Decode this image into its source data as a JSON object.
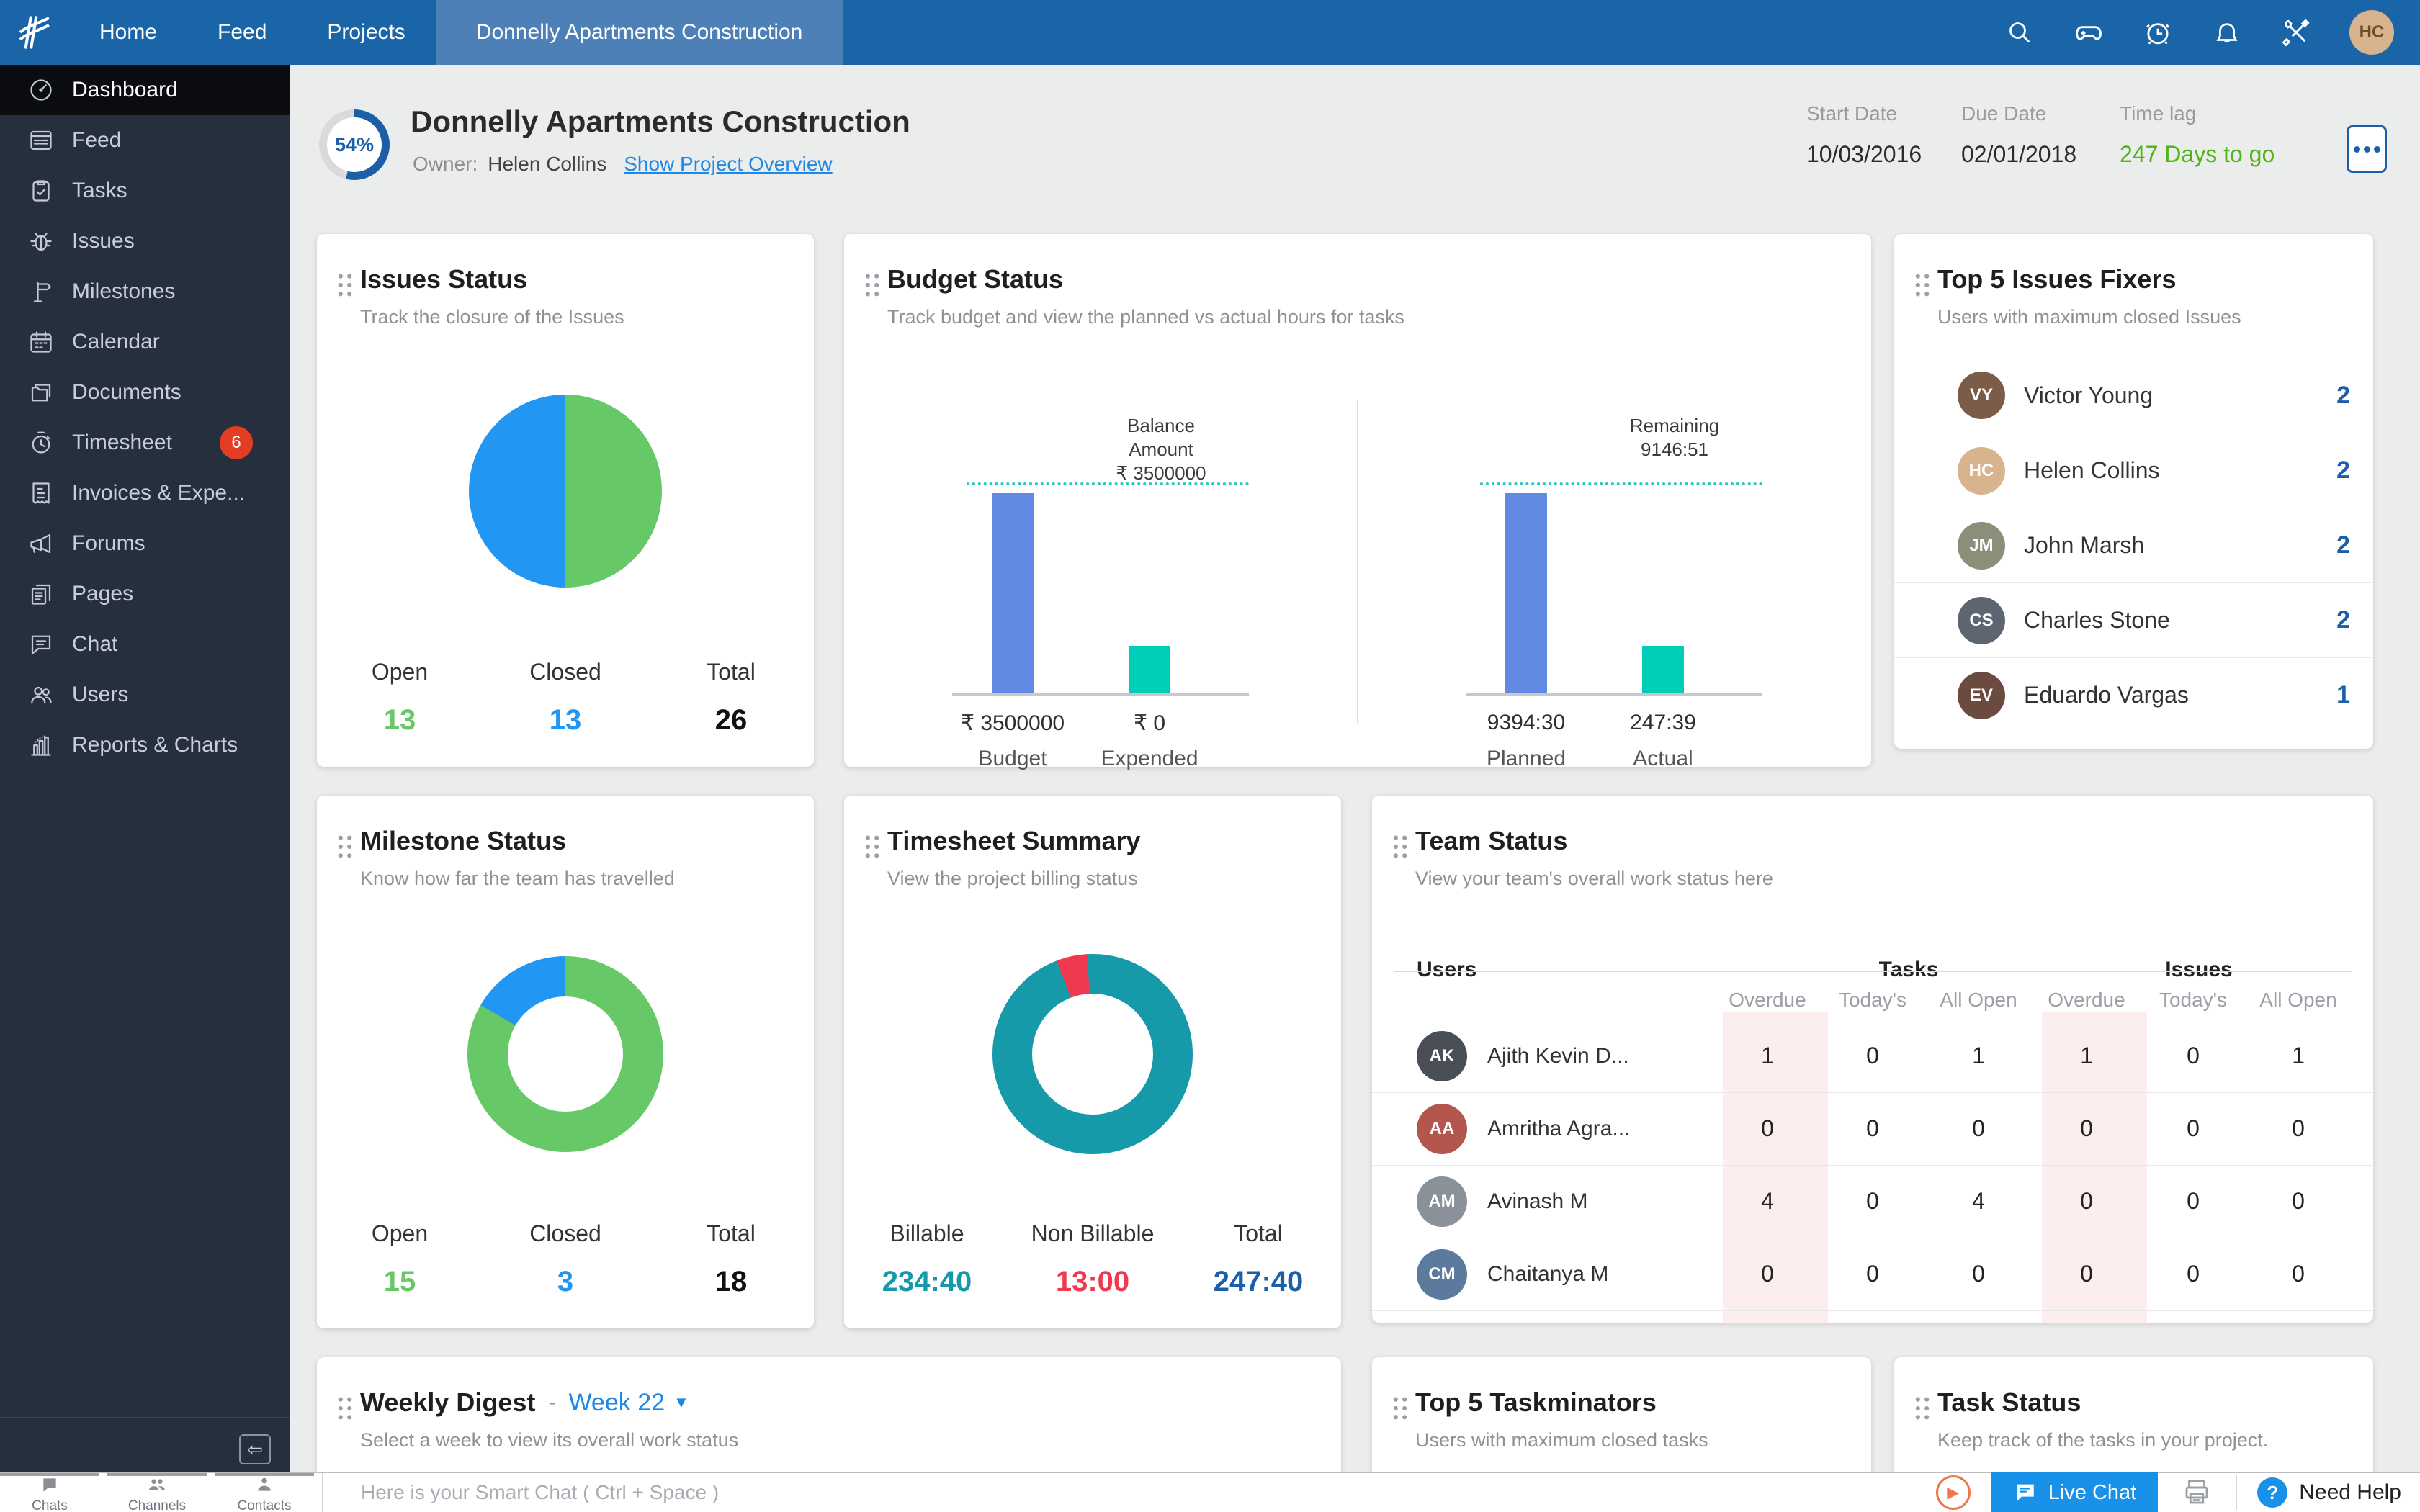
{
  "nav": {
    "items": [
      {
        "label": "Home"
      },
      {
        "label": "Feed"
      },
      {
        "label": "Projects"
      }
    ],
    "active_project_tab": "Donnelly Apartments Construction",
    "user_avatar_initials": "HC"
  },
  "sidebar": {
    "items": [
      {
        "label": "Dashboard",
        "icon": "dashboard",
        "active": true
      },
      {
        "label": "Feed",
        "icon": "feed"
      },
      {
        "label": "Tasks",
        "icon": "tasks"
      },
      {
        "label": "Issues",
        "icon": "bug"
      },
      {
        "label": "Milestones",
        "icon": "milestone"
      },
      {
        "label": "Calendar",
        "icon": "calendar"
      },
      {
        "label": "Documents",
        "icon": "documents"
      },
      {
        "label": "Timesheet",
        "icon": "timesheet",
        "badge": "6"
      },
      {
        "label": "Invoices & Expe...",
        "icon": "invoice"
      },
      {
        "label": "Forums",
        "icon": "forum"
      },
      {
        "label": "Pages",
        "icon": "pages"
      },
      {
        "label": "Chat",
        "icon": "chat"
      },
      {
        "label": "Users",
        "icon": "users"
      },
      {
        "label": "Reports & Charts",
        "icon": "reports"
      }
    ]
  },
  "header": {
    "progress_percent": "54%",
    "title": "Donnelly Apartments Construction",
    "owner_label": "Owner:",
    "owner_name": "Helen Collins",
    "overview_link": "Show Project Overview",
    "start_date_label": "Start Date",
    "start_date": "10/03/2016",
    "due_date_label": "Due Date",
    "due_date": "02/01/2018",
    "time_lag_label": "Time lag",
    "time_lag": "247 Days to go"
  },
  "cards": {
    "issues": {
      "title": "Issues Status",
      "subtitle": "Track the closure of the Issues",
      "stats": [
        {
          "label": "Open",
          "value": "13",
          "color": "#67C868"
        },
        {
          "label": "Closed",
          "value": "13",
          "color": "#2196F3"
        },
        {
          "label": "Total",
          "value": "26",
          "color": "#111111"
        }
      ],
      "chart_data": {
        "type": "pie",
        "categories": [
          "Open",
          "Closed"
        ],
        "values": [
          13,
          13
        ],
        "colors": [
          "#67C868",
          "#2196F3"
        ],
        "total": 26,
        "title": "Issues Status"
      }
    },
    "budget": {
      "title": "Budget Status",
      "subtitle": "Track budget and view the planned vs actual hours for tasks",
      "left": {
        "annotation_lines": [
          "Balance",
          "Amount",
          "₹ 3500000"
        ],
        "bars": [
          {
            "value": "₹ 3500000",
            "label": "Budget"
          },
          {
            "value": "₹ 0",
            "label": "Expended"
          }
        ]
      },
      "right": {
        "annotation_lines": [
          "Remaining",
          "9146:51"
        ],
        "bars": [
          {
            "value": "9394:30",
            "label": "Planned"
          },
          {
            "value": "247:39",
            "label": "Actual"
          }
        ]
      },
      "chart_data": [
        {
          "type": "bar",
          "categories": [
            "Budget",
            "Expended"
          ],
          "values": [
            3500000,
            0
          ],
          "annotation": "Balance Amount ₹ 3500000",
          "colors": [
            "#6289E3",
            "#00CDB5"
          ]
        },
        {
          "type": "bar",
          "categories": [
            "Planned",
            "Actual"
          ],
          "values": [
            "9394:30",
            "247:39"
          ],
          "annotation": "Remaining 9146:51",
          "colors": [
            "#6289E3",
            "#00CDB5"
          ]
        }
      ]
    },
    "fixers": {
      "title": "Top 5 Issues Fixers",
      "subtitle": "Users with maximum closed Issues",
      "rows": [
        {
          "name": "Victor Young",
          "count": "2",
          "initials": "VY",
          "color": "#7A5C49"
        },
        {
          "name": "Helen Collins",
          "count": "2",
          "initials": "HC",
          "color": "#D8B48E"
        },
        {
          "name": "John Marsh",
          "count": "2",
          "initials": "JM",
          "color": "#8A8F7A"
        },
        {
          "name": "Charles Stone",
          "count": "2",
          "initials": "CS",
          "color": "#5D6670"
        },
        {
          "name": "Eduardo Vargas",
          "count": "1",
          "initials": "EV",
          "color": "#6B4A3F"
        }
      ]
    },
    "milestone": {
      "title": "Milestone Status",
      "subtitle": "Know how far the team has travelled",
      "stats": [
        {
          "label": "Open",
          "value": "15",
          "color": "#67C868"
        },
        {
          "label": "Closed",
          "value": "3",
          "color": "#2196F3"
        },
        {
          "label": "Total",
          "value": "18",
          "color": "#111111"
        }
      ],
      "chart_data": {
        "type": "pie",
        "subtype": "donut",
        "categories": [
          "Open",
          "Closed"
        ],
        "values": [
          15,
          3
        ],
        "colors": [
          "#67C868",
          "#2196F3"
        ],
        "total": 18,
        "title": "Milestone Status"
      }
    },
    "timesheet": {
      "title": "Timesheet Summary",
      "subtitle": "View the project billing status",
      "stats": [
        {
          "label": "Billable",
          "value": "234:40",
          "color": "#1699A8"
        },
        {
          "label": "Non Billable",
          "value": "13:00",
          "color": "#F0384F"
        },
        {
          "label": "Total",
          "value": "247:40",
          "color": "#1B5FAA"
        }
      ],
      "chart_data": {
        "type": "pie",
        "subtype": "donut",
        "categories": [
          "Billable",
          "Non Billable"
        ],
        "values": [
          "234:40",
          "13:00"
        ],
        "colors": [
          "#1699A8",
          "#F0384F"
        ],
        "total": "247:40",
        "title": "Timesheet Summary"
      }
    },
    "team": {
      "title": "Team Status",
      "subtitle": "View your team's overall work status here",
      "group_headers": [
        "Users",
        "Tasks",
        "Issues"
      ],
      "sub_headers": [
        "Overdue",
        "Today's",
        "All Open",
        "Overdue",
        "Today's",
        "All Open"
      ],
      "rows": [
        {
          "name": "Ajith Kevin D...",
          "initials": "AK",
          "color": "#4A4F57",
          "values": [
            "1",
            "0",
            "1",
            "1",
            "0",
            "1"
          ]
        },
        {
          "name": "Amritha Agra...",
          "initials": "AA",
          "color": "#B2564E",
          "values": [
            "0",
            "0",
            "0",
            "0",
            "0",
            "0"
          ]
        },
        {
          "name": "Avinash M",
          "initials": "AM",
          "color": "#8A9199",
          "values": [
            "4",
            "0",
            "4",
            "0",
            "0",
            "0"
          ]
        },
        {
          "name": "Chaitanya M",
          "initials": "CM",
          "color": "#5B7A9D",
          "values": [
            "0",
            "0",
            "0",
            "0",
            "0",
            "0"
          ]
        }
      ]
    },
    "weekly": {
      "title": "Weekly Digest",
      "dash": "-",
      "week": "Week 22",
      "subtitle": "Select a week to view its overall work status"
    },
    "taskminators": {
      "title": "Top 5 Taskminators",
      "subtitle": "Users with maximum closed tasks"
    },
    "taskstatus": {
      "title": "Task Status",
      "subtitle": "Keep track of the tasks in your project."
    }
  },
  "bottombar": {
    "tabs": [
      {
        "label": "Chats",
        "icon": "chat-bubble"
      },
      {
        "label": "Channels",
        "icon": "people-group"
      },
      {
        "label": "Contacts",
        "icon": "person"
      }
    ],
    "input_placeholder": "Here is your Smart Chat ( Ctrl + Space )",
    "live_chat_label": "Live Chat",
    "need_help_label": "Need Help"
  }
}
